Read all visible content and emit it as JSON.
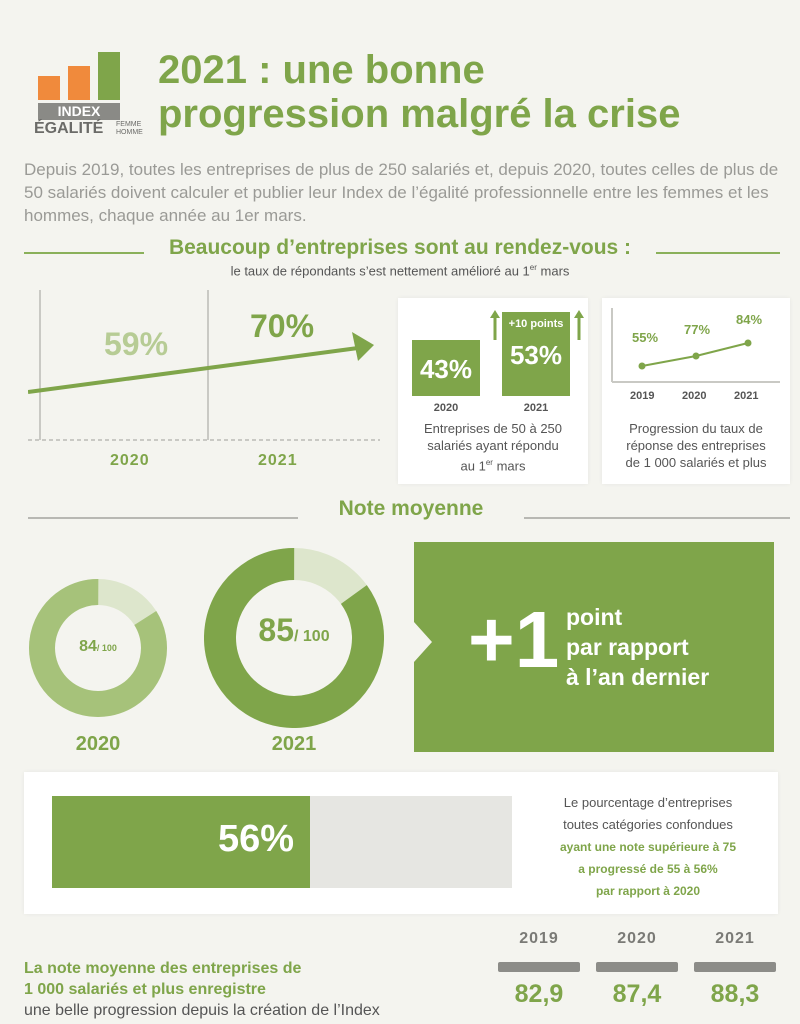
{
  "logo": {
    "index": "INDEX",
    "egalite": "ÉGALITÉ",
    "femme": "FEMME",
    "homme": "HOMME",
    "colors": [
      "#f08a3c",
      "#f08a3c",
      "#7fa54a"
    ]
  },
  "title": {
    "line1": "2021 : une bonne",
    "line2": "progression malgré la crise"
  },
  "intro": "Depuis 2019, toutes les entreprises de plus de 250 salariés et, depuis 2020, toutes celles de plus de 50 salariés doivent calculer et publier leur Index de l’égalité professionnelle entre les femmes et les hommes, chaque année au 1er mars.",
  "section1": {
    "heading": "Beaucoup d’entreprises sont au rendez-vous :",
    "subheading_pre": "le taux de répondants s’est nettement amélioré au 1",
    "subheading_sup": "er",
    "subheading_post": " mars",
    "trend": {
      "pct_2020": "59%",
      "pct_2021": "70%",
      "year_2020": "2020",
      "year_2021": "2021"
    },
    "card_small": {
      "pct_2020": "43%",
      "pct_2021": "53%",
      "gain": "+10 points",
      "year_2020": "2020",
      "year_2021": "2021",
      "caption_line1": "Entreprises de 50 à 250",
      "caption_line2": "salariés ayant répondu",
      "caption_line3_pre": "au 1",
      "caption_line3_sup": "er",
      "caption_line3_post": " mars"
    },
    "card_large": {
      "pct_2019": "55%",
      "pct_2020": "77%",
      "pct_2021": "84%",
      "year_2019": "2019",
      "year_2020": "2020",
      "year_2021": "2021",
      "caption_line1": "Progression du taux de",
      "caption_line2": "réponse des entreprises",
      "caption_line3": "de 1 000 salariés et plus"
    }
  },
  "section2": {
    "heading": "Note moyenne",
    "donut_2020": {
      "value": "84",
      "unit": "/ 100",
      "year": "2020",
      "fraction": 0.84
    },
    "donut_2021": {
      "value": "85",
      "unit": "/ 100",
      "year": "2021",
      "fraction": 0.85
    },
    "callout": {
      "big": "+1",
      "line1": "point",
      "line2": "par rapport",
      "line3": "à l’an dernier"
    }
  },
  "section3": {
    "bar_value": "56%",
    "bar_fraction": 0.56,
    "text_line1": "Le pourcentage d’entreprises",
    "text_line2": "toutes catégories confondues",
    "text_line3": "ayant une note supérieure à 75",
    "text_line4": "a progressé de 55 à 56%",
    "text_line5": "par rapport à 2020"
  },
  "section4": {
    "label_line1": "La note moyenne des entreprises de",
    "label_line2": "1 000 salariés et plus enregistre",
    "label_line3": "une belle progression depuis la création de l’Index",
    "stats": [
      {
        "year": "2019",
        "value": "82,9"
      },
      {
        "year": "2020",
        "value": "87,4"
      },
      {
        "year": "2021",
        "value": "88,3"
      }
    ]
  }
}
